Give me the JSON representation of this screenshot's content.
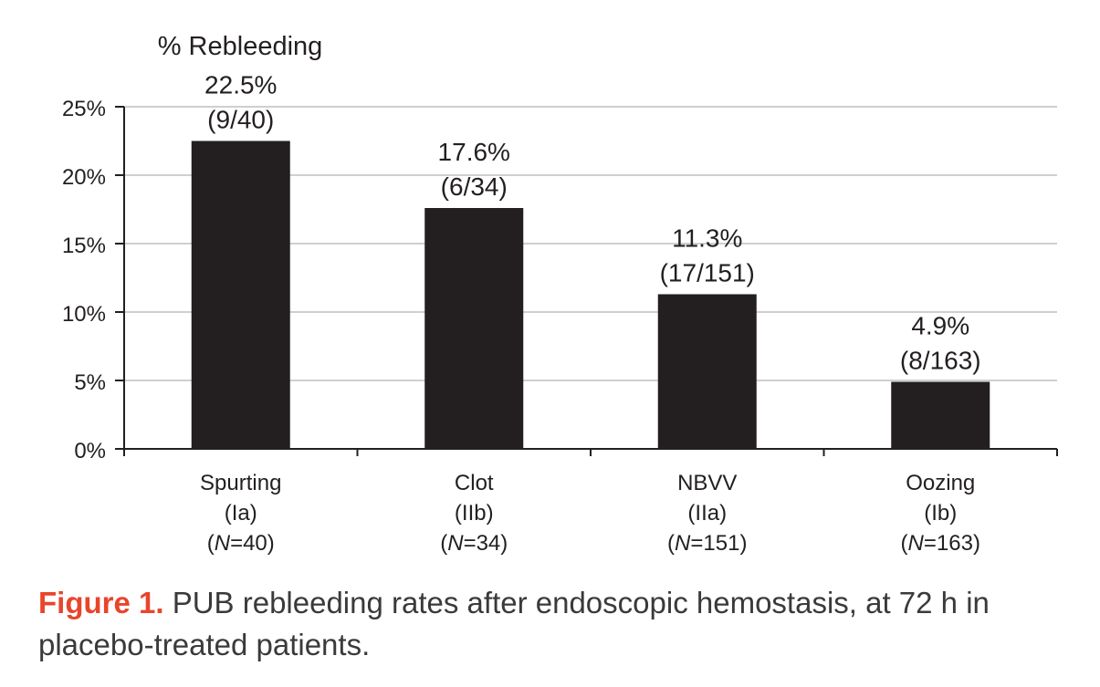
{
  "chart_data": {
    "type": "bar",
    "title": "% Rebleeding",
    "categories": [
      {
        "name": "Spurting",
        "class": "(Ia)",
        "n": "40"
      },
      {
        "name": "Clot",
        "class": "(IIb)",
        "n": "34"
      },
      {
        "name": "NBVV",
        "class": "(IIa)",
        "n": "151"
      },
      {
        "name": "Oozing",
        "class": "(Ib)",
        "n": "163"
      }
    ],
    "values": [
      22.5,
      17.6,
      11.3,
      4.9
    ],
    "value_labels": [
      "22.5%",
      "17.6%",
      "11.3%",
      "4.9%"
    ],
    "count_labels": [
      "(9/40)",
      "(6/34)",
      "(17/151)",
      "(8/163)"
    ],
    "ylim": [
      0,
      25
    ],
    "yticks": [
      0,
      5,
      10,
      15,
      20,
      25
    ],
    "ytick_labels": [
      "0%",
      "5%",
      "10%",
      "15%",
      "20%",
      "25%"
    ],
    "n_prefix": "N",
    "grid": true,
    "bar_color": "#231f20",
    "grid_color": "#cfcfcf"
  },
  "caption": {
    "label": "Figure 1.",
    "text": "PUB rebleeding rates after endoscopic hemostasis, at 72 h in placebo-treated patients."
  }
}
